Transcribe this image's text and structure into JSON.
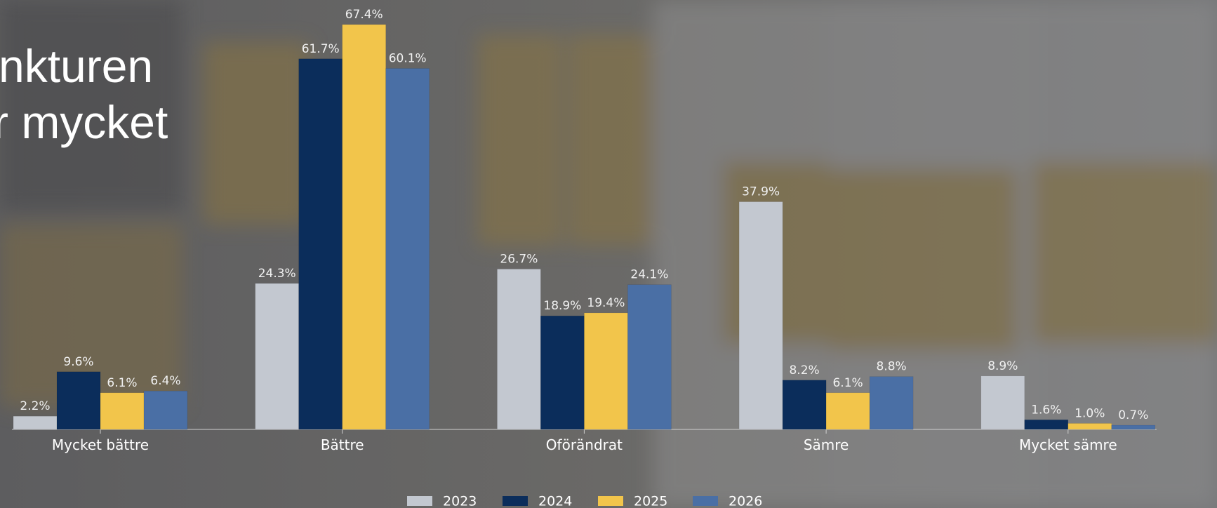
{
  "chart_data": {
    "type": "bar",
    "title_lines": [
      "nkturen",
      "r mycket"
    ],
    "categories": [
      "Mycket bättre",
      "Bättre",
      "Oförändrat",
      "Sämre",
      "Mycket sämre"
    ],
    "series": [
      {
        "name": "2023",
        "color": "#c3c8d0",
        "values": [
          2.2,
          24.3,
          26.7,
          37.9,
          8.9
        ],
        "value_labels": [
          "2.2%",
          "24.3%",
          "26.7%",
          "37.9%",
          "8.9%"
        ]
      },
      {
        "name": "2024",
        "color": "#0b2d5b",
        "values": [
          9.6,
          61.7,
          18.9,
          8.2,
          1.6
        ],
        "value_labels": [
          "9.6%",
          "61.7%",
          "18.9%",
          "8.2%",
          "1.6%"
        ]
      },
      {
        "name": "2025",
        "color": "#f2c54b",
        "values": [
          6.1,
          67.4,
          19.4,
          6.1,
          1.0
        ],
        "value_labels": [
          "6.1%",
          "67.4%",
          "19.4%",
          "6.1%",
          "1.0%"
        ]
      },
      {
        "name": "2026",
        "color": "#4a6fa5",
        "values": [
          6.4,
          60.1,
          24.1,
          8.8,
          0.7
        ],
        "value_labels": [
          "6.4%",
          "60.1%",
          "24.1%",
          "8.8%",
          "0.7%"
        ]
      }
    ],
    "legend": "bottom"
  }
}
